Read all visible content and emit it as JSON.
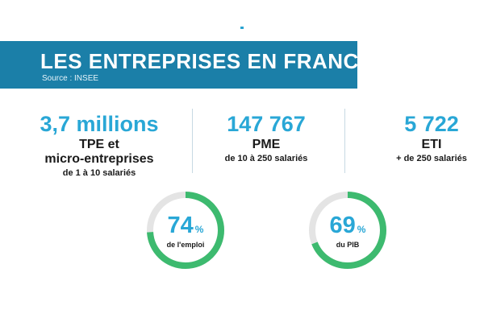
{
  "banner": {
    "title": "LES ENTREPRISES EN FRANCE",
    "source": "Source : INSEE"
  },
  "stats": [
    {
      "number": "3,7 millions",
      "category_line1": "TPE et",
      "category_line2": "micro-entreprises",
      "subtitle": "de 1 à 10 salariés"
    },
    {
      "number": "147 767",
      "category_line1": "PME",
      "subtitle": "de 10 à 250 salariés"
    },
    {
      "number": "5 722",
      "category_line1": "ETI",
      "subtitle": "+ de 250 salariés"
    }
  ],
  "donuts": [
    {
      "value": 74,
      "value_text": "74",
      "unit": "%",
      "label": "de l'emploi"
    },
    {
      "value": 69,
      "value_text": "69",
      "unit": "%",
      "label": "du PIB"
    }
  ],
  "colors": {
    "banner": "#1b7fa8",
    "accent_blue": "#29a7d6",
    "ring_fill": "#3dba6f",
    "ring_track": "#e4e4e4"
  }
}
